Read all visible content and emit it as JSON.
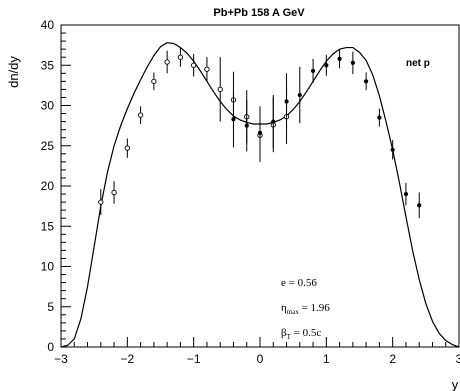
{
  "chart_data": {
    "type": "scatter",
    "title": "Pb+Pb 158 A GeV",
    "xlabel": "y",
    "ylabel": "dn/dy",
    "xlim": [
      -3,
      3
    ],
    "ylim": [
      0,
      40
    ],
    "x_ticks": [
      "−3",
      "−2",
      "−1",
      "0",
      "1",
      "2",
      "3"
    ],
    "y_ticks": [
      "0",
      "5",
      "10",
      "15",
      "20",
      "25",
      "30",
      "35",
      "40"
    ],
    "legend": "net p",
    "grid": false,
    "annotations": {
      "e": {
        "symbol": "e",
        "sub": "",
        "text": " = 0.56"
      },
      "eta": {
        "symbol": "η",
        "sub": "max",
        "text": " = 1.96"
      },
      "beta": {
        "symbol": "β",
        "sub": "T",
        "text": " = 0.5c"
      }
    },
    "series": [
      {
        "marker": "open-circle",
        "points": [
          {
            "x": -2.4,
            "y": 18.0,
            "err": 1.6
          },
          {
            "x": -2.2,
            "y": 19.2,
            "err": 1.4
          },
          {
            "x": -2.0,
            "y": 24.7,
            "err": 1.2
          },
          {
            "x": -1.8,
            "y": 28.8,
            "err": 1.1
          },
          {
            "x": -1.6,
            "y": 33.0,
            "err": 1.1
          },
          {
            "x": -1.4,
            "y": 35.4,
            "err": 1.4
          },
          {
            "x": -1.2,
            "y": 36.0,
            "err": 1.2
          },
          {
            "x": -1.0,
            "y": 35.0,
            "err": 1.4
          },
          {
            "x": -0.8,
            "y": 34.5,
            "err": 1.5
          },
          {
            "x": -0.6,
            "y": 32.0,
            "err": 4.0
          },
          {
            "x": -0.4,
            "y": 30.7,
            "err": 3.5
          },
          {
            "x": -0.2,
            "y": 28.6,
            "err": 3.3
          },
          {
            "x": 0.0,
            "y": 26.3,
            "err": 3.3
          },
          {
            "x": 0.2,
            "y": 27.6,
            "err": 3.4
          },
          {
            "x": 0.4,
            "y": 28.6,
            "err": 3.4
          }
        ]
      },
      {
        "marker": "filled-circle",
        "points": [
          {
            "x": -0.4,
            "y": 28.3,
            "err": 3.5
          },
          {
            "x": -0.2,
            "y": 27.5,
            "err": 3.2
          },
          {
            "x": 0.0,
            "y": 26.6,
            "err": 3.3
          },
          {
            "x": 0.2,
            "y": 28.0,
            "err": 3.3
          },
          {
            "x": 0.4,
            "y": 30.5,
            "err": 3.5
          },
          {
            "x": 0.6,
            "y": 31.3,
            "err": 3.5
          },
          {
            "x": 0.8,
            "y": 34.3,
            "err": 1.5
          },
          {
            "x": 1.0,
            "y": 35.0,
            "err": 1.3
          },
          {
            "x": 1.2,
            "y": 35.8,
            "err": 1.2
          },
          {
            "x": 1.4,
            "y": 35.3,
            "err": 1.4
          },
          {
            "x": 1.6,
            "y": 33.0,
            "err": 1.1
          },
          {
            "x": 1.8,
            "y": 28.5,
            "err": 1.1
          },
          {
            "x": 2.0,
            "y": 24.5,
            "err": 1.2
          },
          {
            "x": 2.2,
            "y": 19.0,
            "err": 1.4
          },
          {
            "x": 2.4,
            "y": 17.6,
            "err": 1.6
          }
        ]
      },
      {
        "type": "line",
        "points": [
          [
            -3.0,
            0.0
          ],
          [
            -2.9,
            0.2
          ],
          [
            -2.8,
            1.0
          ],
          [
            -2.7,
            3.5
          ],
          [
            -2.6,
            7.5
          ],
          [
            -2.5,
            12.5
          ],
          [
            -2.4,
            17.5
          ],
          [
            -2.3,
            21.7
          ],
          [
            -2.2,
            25.0
          ],
          [
            -2.1,
            27.5
          ],
          [
            -2.0,
            29.6
          ],
          [
            -1.9,
            31.5
          ],
          [
            -1.8,
            33.2
          ],
          [
            -1.7,
            34.8
          ],
          [
            -1.6,
            36.2
          ],
          [
            -1.5,
            37.3
          ],
          [
            -1.4,
            37.8
          ],
          [
            -1.3,
            37.7
          ],
          [
            -1.2,
            37.2
          ],
          [
            -1.1,
            36.5
          ],
          [
            -1.0,
            35.5
          ],
          [
            -0.9,
            34.3
          ],
          [
            -0.8,
            33.0
          ],
          [
            -0.7,
            31.7
          ],
          [
            -0.6,
            30.5
          ],
          [
            -0.5,
            29.5
          ],
          [
            -0.4,
            28.7
          ],
          [
            -0.3,
            28.2
          ],
          [
            -0.2,
            27.9
          ],
          [
            -0.1,
            27.7
          ],
          [
            0.0,
            27.7
          ],
          [
            0.1,
            27.7
          ],
          [
            0.2,
            27.9
          ],
          [
            0.3,
            28.2
          ],
          [
            0.4,
            28.7
          ],
          [
            0.5,
            29.5
          ],
          [
            0.6,
            30.5
          ],
          [
            0.7,
            31.7
          ],
          [
            0.8,
            33.0
          ],
          [
            0.9,
            34.3
          ],
          [
            1.0,
            35.5
          ],
          [
            1.1,
            36.4
          ],
          [
            1.2,
            37.0
          ],
          [
            1.3,
            37.2
          ],
          [
            1.4,
            37.2
          ],
          [
            1.5,
            36.6
          ],
          [
            1.6,
            35.6
          ],
          [
            1.7,
            33.8
          ],
          [
            1.8,
            31.2
          ],
          [
            1.9,
            28.0
          ],
          [
            2.0,
            24.5
          ],
          [
            2.1,
            20.5
          ],
          [
            2.2,
            16.2
          ],
          [
            2.3,
            12.0
          ],
          [
            2.4,
            8.4
          ],
          [
            2.5,
            5.4
          ],
          [
            2.6,
            3.2
          ],
          [
            2.7,
            1.7
          ],
          [
            2.8,
            0.8
          ],
          [
            2.9,
            0.3
          ],
          [
            3.0,
            0.0
          ]
        ]
      }
    ]
  }
}
